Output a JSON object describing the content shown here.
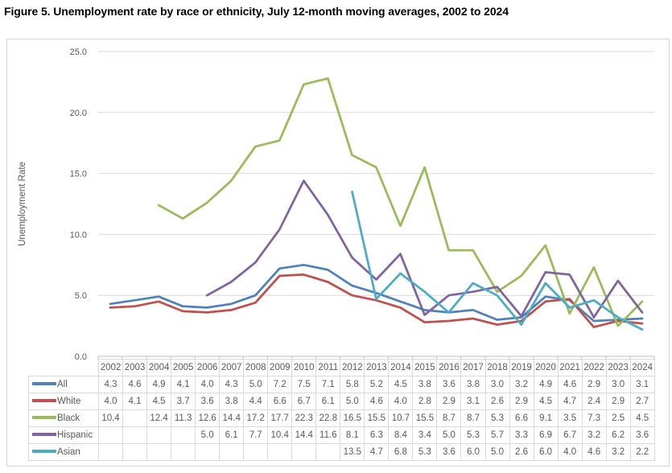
{
  "title": "Figure 5. Unemployment rate by race or ethnicity, July 12-month moving averages, 2002 to 2024",
  "chart_data": {
    "type": "line",
    "title": "Figure 5. Unemployment rate by race or ethnicity, July 12-month moving averages, 2002 to 2024",
    "xlabel": "",
    "ylabel": "Unemployment Rate",
    "ylim": [
      0,
      25
    ],
    "ytick_step": 5,
    "ytick_labels": [
      "0.0",
      "5.0",
      "10.0",
      "15.0",
      "20.0",
      "25.0"
    ],
    "grid": true,
    "legend_position": "table-left",
    "categories": [
      "2002",
      "2003",
      "2004",
      "2005",
      "2006",
      "2007",
      "2008",
      "2009",
      "2010",
      "2011",
      "2012",
      "2013",
      "2014",
      "2015",
      "2016",
      "2017",
      "2018",
      "2019",
      "2020",
      "2021",
      "2022",
      "2023",
      "2024"
    ],
    "series": [
      {
        "name": "All",
        "color": "#4F81BD",
        "values": [
          4.3,
          4.6,
          4.9,
          4.1,
          4.0,
          4.3,
          5.0,
          7.2,
          7.5,
          7.1,
          5.8,
          5.2,
          4.5,
          3.8,
          3.6,
          3.8,
          3.0,
          3.2,
          4.9,
          4.6,
          2.9,
          3.0,
          3.1
        ]
      },
      {
        "name": "White",
        "color": "#C0504D",
        "values": [
          4.0,
          4.1,
          4.5,
          3.7,
          3.6,
          3.8,
          4.4,
          6.6,
          6.7,
          6.1,
          5.0,
          4.6,
          4.0,
          2.8,
          2.9,
          3.1,
          2.6,
          2.9,
          4.5,
          4.7,
          2.4,
          2.9,
          2.7
        ]
      },
      {
        "name": "Black",
        "color": "#9BBB59",
        "values": [
          10.4,
          null,
          12.4,
          11.3,
          12.6,
          14.4,
          17.2,
          17.7,
          22.3,
          22.8,
          16.5,
          15.5,
          10.7,
          15.5,
          8.7,
          8.7,
          5.3,
          6.6,
          9.1,
          3.5,
          7.3,
          2.5,
          4.5
        ]
      },
      {
        "name": "Hispanic",
        "color": "#8064A2",
        "values": [
          null,
          null,
          null,
          null,
          5.0,
          6.1,
          7.7,
          10.4,
          14.4,
          11.6,
          8.1,
          6.3,
          8.4,
          3.4,
          5.0,
          5.3,
          5.7,
          3.3,
          6.9,
          6.7,
          3.2,
          6.2,
          3.6
        ]
      },
      {
        "name": "Asian",
        "color": "#4BACC6",
        "values": [
          null,
          null,
          null,
          null,
          null,
          null,
          null,
          null,
          null,
          null,
          13.5,
          4.7,
          6.8,
          5.3,
          3.6,
          6.0,
          5.0,
          2.6,
          6.0,
          4.0,
          4.6,
          3.2,
          2.2
        ]
      }
    ],
    "colors": {
      "gridline": "#d9d9d9",
      "axis": "#bfbfbf",
      "axis_text": "#595959",
      "table_border": "#d9d9d9",
      "frame_border": "#d5d5d5"
    }
  }
}
